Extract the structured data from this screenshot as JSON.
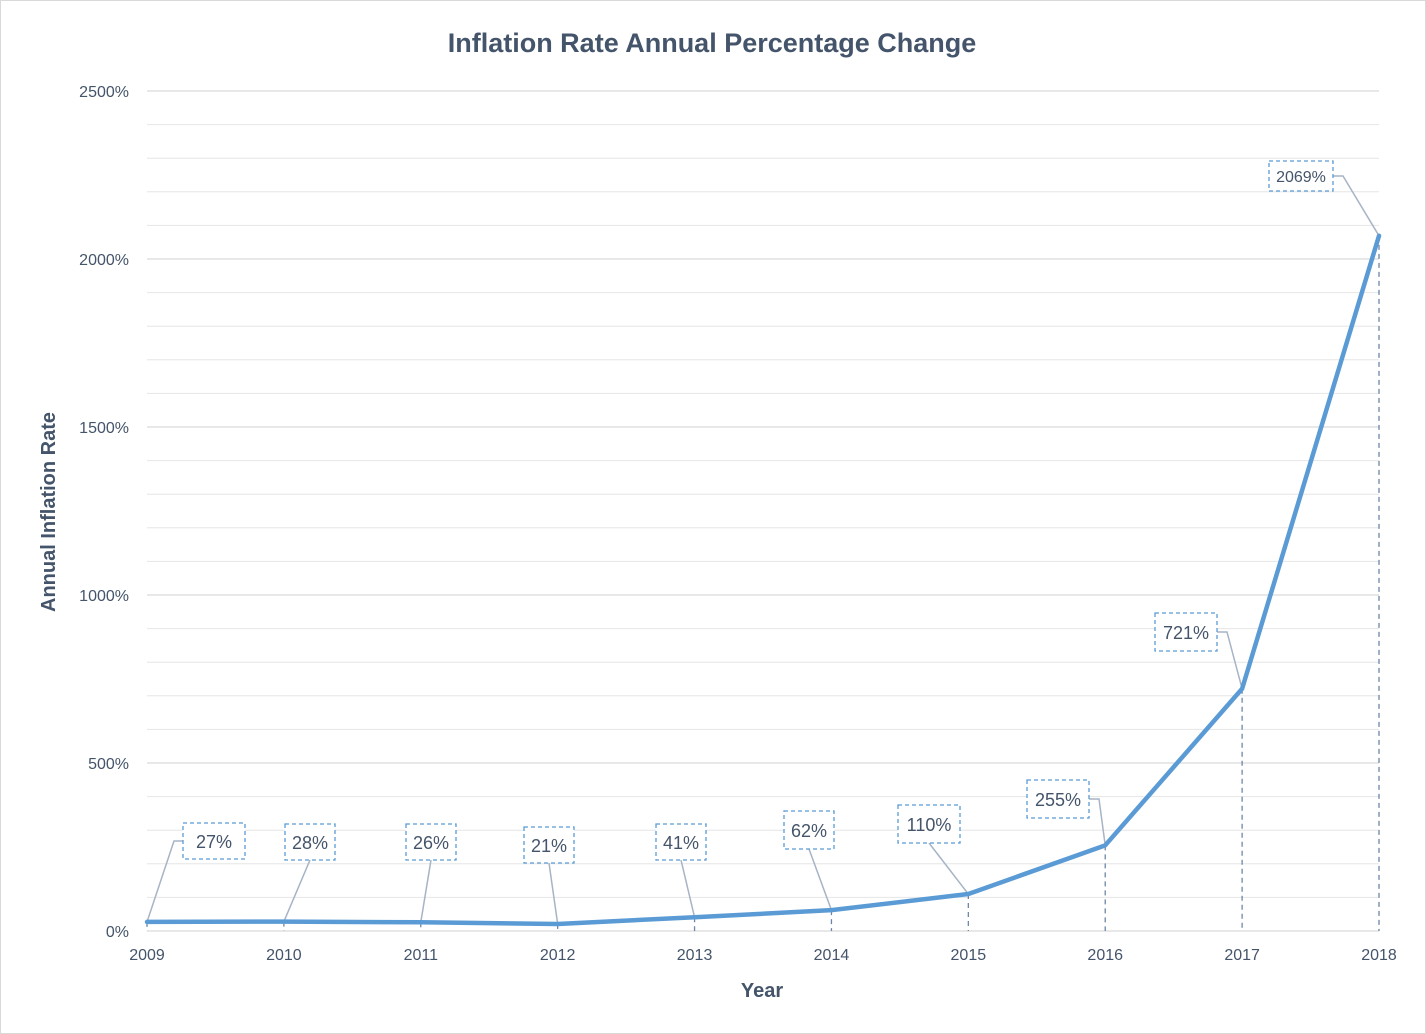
{
  "chart_data": {
    "type": "line",
    "title": "Inflation Rate Annual Percentage Change",
    "xlabel": "Year",
    "ylabel": "Annual Inflation Rate",
    "ylim": [
      0,
      2500
    ],
    "y_tick_labels": [
      "0%",
      "500%",
      "1000%",
      "1500%",
      "2000%",
      "2500%"
    ],
    "y_tick_values": [
      0,
      500,
      1000,
      1500,
      2000,
      2500
    ],
    "grid": true,
    "legend": "none",
    "categories": [
      "2009",
      "2010",
      "2011",
      "2012",
      "2013",
      "2014",
      "2015",
      "2016",
      "2017",
      "2018"
    ],
    "series": [
      {
        "values": [
          27,
          28,
          26,
          21,
          41,
          62,
          110,
          255,
          721,
          2069
        ],
        "data_labels": [
          "27%",
          "28%",
          "26%",
          "21%",
          "41%",
          "62%",
          "110%",
          "255%",
          "721%",
          "2069%"
        ],
        "color": "#5b9bd5"
      }
    ]
  },
  "colors": {
    "line": "#5b9bd5",
    "gridline": "#d9d9d9",
    "leader": "#a6b4c6",
    "label_border": "#5b9bd5",
    "text": "#44546a"
  }
}
